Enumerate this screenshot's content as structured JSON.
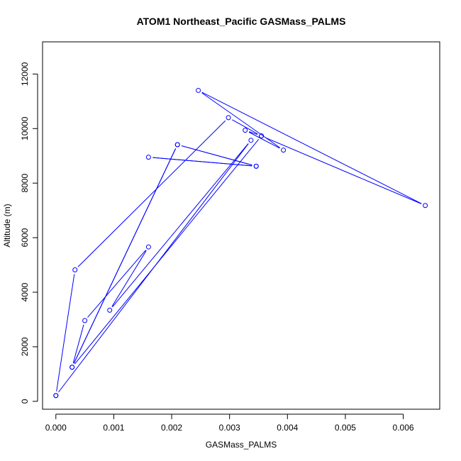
{
  "chart_data": {
    "type": "line",
    "title": "ATOM1 Northeast_Pacific GASMass_PALMS",
    "xlabel": "GASMass_PALMS",
    "ylabel": "Altitude (m)",
    "xlim": [
      -0.00023,
      0.00663
    ],
    "ylim": [
      -290,
      13180
    ],
    "x_ticks": [
      0.0,
      0.001,
      0.002,
      0.003,
      0.004,
      0.005,
      0.006
    ],
    "x_tick_labels": [
      "0.000",
      "0.001",
      "0.002",
      "0.003",
      "0.004",
      "0.005",
      "0.006"
    ],
    "y_ticks": [
      0,
      2000,
      4000,
      6000,
      8000,
      10000,
      12000
    ],
    "y_tick_labels": [
      "0",
      "2000",
      "4000",
      "6000",
      "8000",
      "10000",
      "12000"
    ],
    "grid": false,
    "series": [
      {
        "color": "#0000ff",
        "markers": "open-circle",
        "points": [
          {
            "x": 0.0,
            "y": 210
          },
          {
            "x": 0.00337,
            "y": 9570
          },
          {
            "x": 0.00093,
            "y": 3340
          },
          {
            "x": 0.0016,
            "y": 5660
          },
          {
            "x": 0.0005,
            "y": 2960
          },
          {
            "x": 0.00028,
            "y": 1250
          },
          {
            "x": 0.0021,
            "y": 9410
          },
          {
            "x": 0.00346,
            "y": 8620
          },
          {
            "x": 0.0016,
            "y": 8950
          },
          {
            "x": 0.00346,
            "y": 8620
          },
          {
            "x": 0.0021,
            "y": 9410
          },
          {
            "x": 0.00028,
            "y": 1250
          },
          {
            "x": 0.00355,
            "y": 9730
          },
          {
            "x": 0.00327,
            "y": 9940
          },
          {
            "x": 0.00393,
            "y": 9210
          },
          {
            "x": 0.00246,
            "y": 11400
          },
          {
            "x": 0.00638,
            "y": 7180
          },
          {
            "x": 0.00355,
            "y": 9730
          },
          {
            "x": 0.00298,
            "y": 10400
          },
          {
            "x": 0.00033,
            "y": 4820
          },
          {
            "x": 0.0,
            "y": 210
          }
        ]
      }
    ]
  }
}
